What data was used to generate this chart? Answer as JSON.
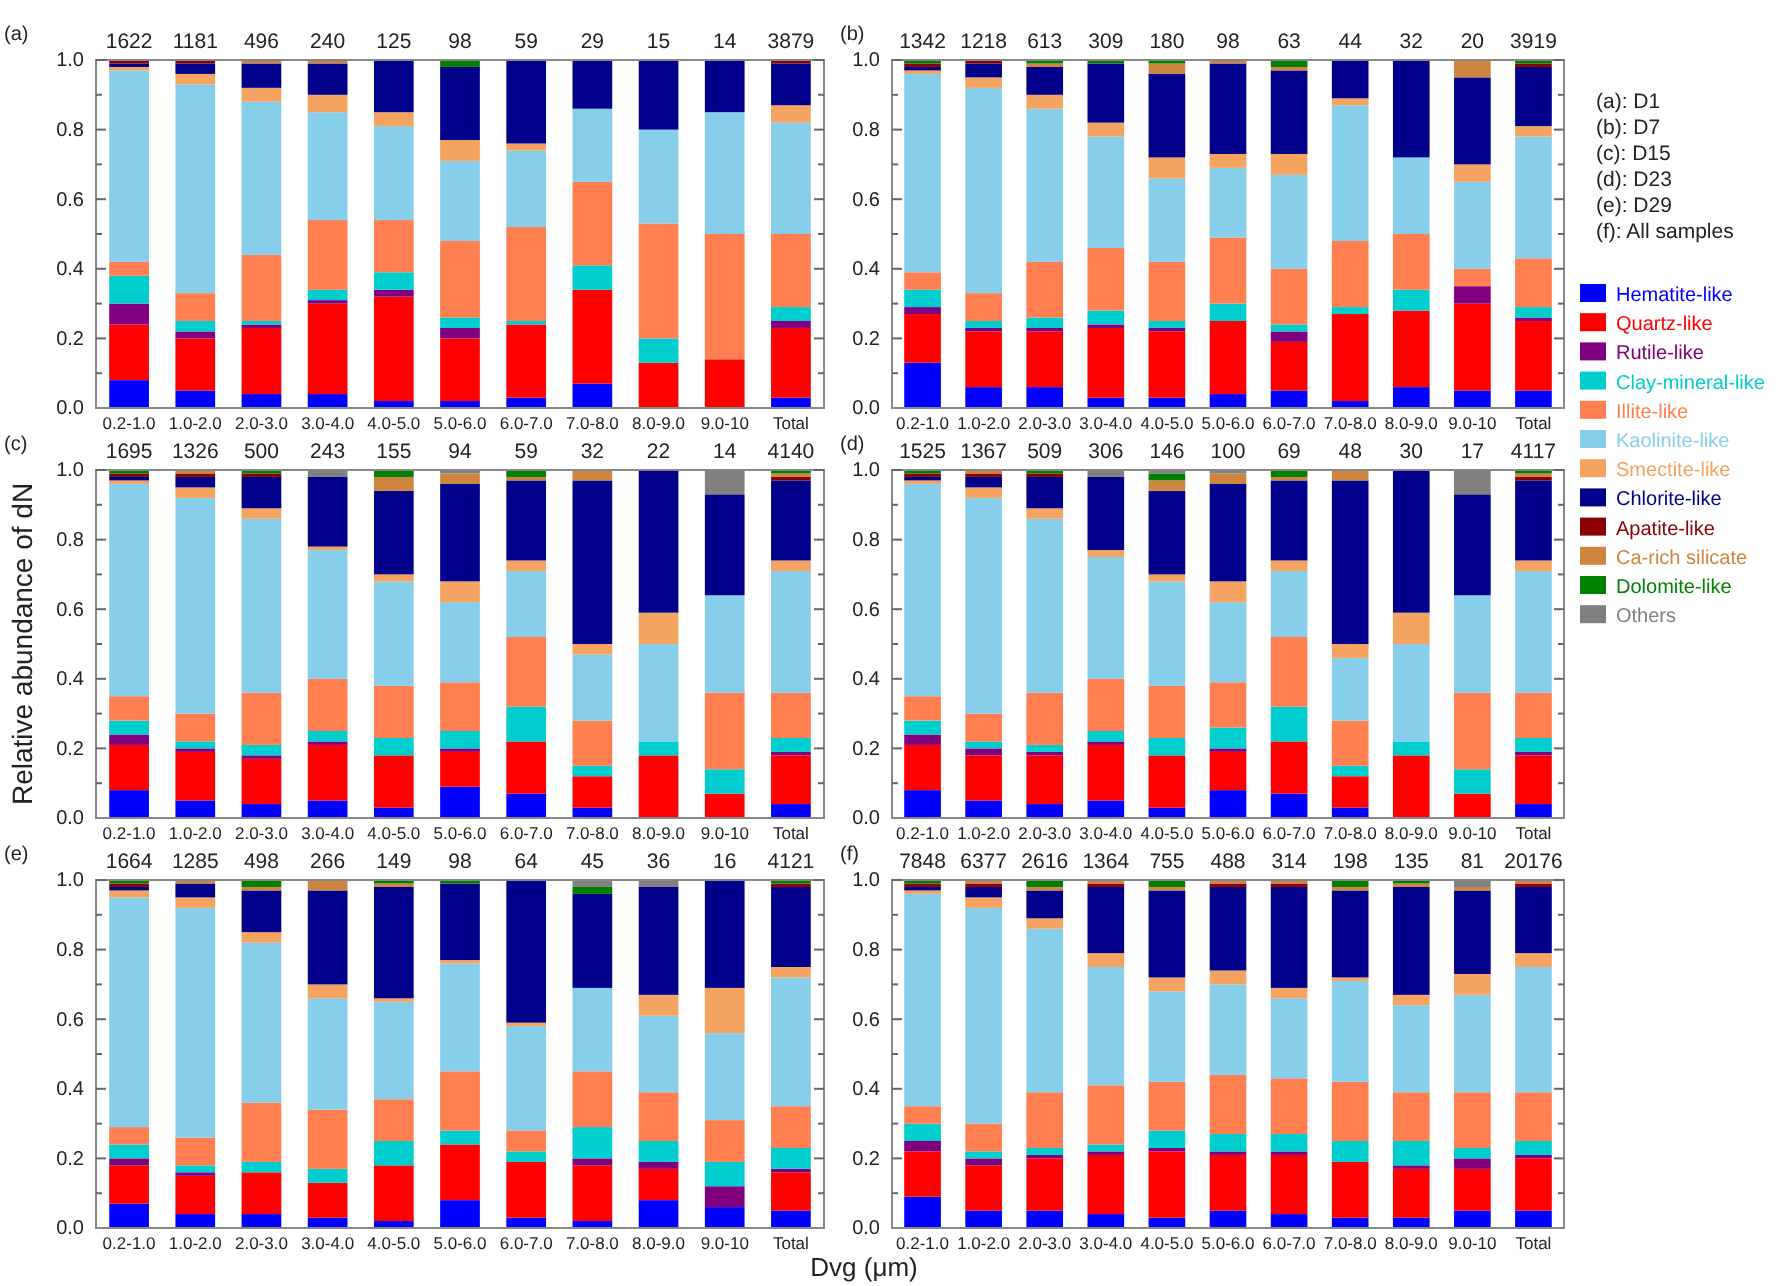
{
  "chart_data": [
    {
      "type": "bar",
      "stacked": true,
      "title": "(a)",
      "categories": [
        "0.2-1.0",
        "1.0-2.0",
        "2.0-3.0",
        "3.0-4.0",
        "4.0-5.0",
        "5.0-6.0",
        "6.0-7.0",
        "7.0-8.0",
        "8.0-9.0",
        "9.0-10",
        "Total"
      ],
      "ylim": [
        0,
        1
      ],
      "yticks": [
        {
          "value": 0,
          "label": "0.0"
        },
        {
          "value": 0.1,
          "label": null
        },
        {
          "value": 0.2,
          "label": "0.2"
        },
        {
          "value": 0.3,
          "label": null
        },
        {
          "value": 0.4,
          "label": "0.4"
        },
        {
          "value": 0.5,
          "label": null
        },
        {
          "value": 0.6,
          "label": "0.6"
        },
        {
          "value": 0.7,
          "label": null
        },
        {
          "value": 0.8,
          "label": "0.8"
        },
        {
          "value": 0.9,
          "label": null
        },
        {
          "value": 1,
          "label": "1.0"
        }
      ],
      "annotations": [
        "1622",
        "1181",
        "496",
        "240",
        "125",
        "98",
        "59",
        "29",
        "15",
        "14",
        "3879"
      ],
      "series": [
        {
          "color": "#0000ff",
          "values": [
            0.08,
            0.05,
            0.04,
            0.04,
            0.02,
            0.02,
            0.03,
            0.07,
            0,
            0,
            0.03
          ]
        },
        {
          "color": "#ff0000",
          "values": [
            0.16,
            0.15,
            0.19,
            0.26,
            0.3,
            0.18,
            0.21,
            0.27,
            0.13,
            0.14,
            0.2
          ]
        },
        {
          "color": "#800080",
          "values": [
            0.06,
            0.02,
            0.01,
            0.01,
            0.02,
            0.03,
            0,
            0,
            0,
            0,
            0.02
          ]
        },
        {
          "color": "#00cdcd",
          "values": [
            0.08,
            0.03,
            0.01,
            0.03,
            0.05,
            0.03,
            0.01,
            0.07,
            0.07,
            0,
            0.04
          ]
        },
        {
          "color": "#ff7f50",
          "values": [
            0.04,
            0.08,
            0.19,
            0.2,
            0.15,
            0.22,
            0.27,
            0.24,
            0.33,
            0.36,
            0.21
          ]
        },
        {
          "color": "#87ceeb",
          "values": [
            0.55,
            0.6,
            0.44,
            0.31,
            0.27,
            0.23,
            0.22,
            0.21,
            0.27,
            0.35,
            0.32
          ]
        },
        {
          "color": "#f4a460",
          "values": [
            0.01,
            0.03,
            0.04,
            0.05,
            0.04,
            0.06,
            0.02,
            0,
            0,
            0,
            0.05
          ]
        },
        {
          "color": "#00008b",
          "values": [
            0.01,
            0.03,
            0.07,
            0.09,
            0.15,
            0.21,
            0.24,
            0.14,
            0.2,
            0.15,
            0.12
          ]
        },
        {
          "color": "#8b0000",
          "values": [
            0.01,
            0.01,
            0,
            0,
            0,
            0,
            0,
            0,
            0,
            0,
            0.01
          ]
        },
        {
          "color": "#cd853f",
          "values": [
            0,
            0,
            0.01,
            0.01,
            0,
            0,
            0,
            0,
            0,
            0,
            0
          ]
        },
        {
          "color": "#008000",
          "values": [
            0,
            0,
            0,
            0,
            0,
            0.02,
            0,
            0,
            0,
            0,
            0
          ]
        },
        {
          "color": "#808080",
          "values": [
            0,
            0,
            0,
            0,
            0,
            0,
            0,
            0,
            0,
            0,
            0
          ]
        }
      ]
    },
    {
      "type": "bar",
      "stacked": true,
      "title": "(b)",
      "legend": "right",
      "categories": [
        "0.2-1.0",
        "1.0-2.0",
        "2.0-3.0",
        "3.0-4.0",
        "4.0-5.0",
        "5.0-6.0",
        "6.0-7.0",
        "7.0-8.0",
        "8.0-9.0",
        "9.0-10",
        "Total"
      ],
      "ylim": [
        0,
        1
      ],
      "yticks": [
        {
          "value": 0,
          "label": "0.0"
        },
        {
          "value": 0.1,
          "label": null
        },
        {
          "value": 0.2,
          "label": "0.2"
        },
        {
          "value": 0.3,
          "label": null
        },
        {
          "value": 0.4,
          "label": "0.4"
        },
        {
          "value": 0.5,
          "label": null
        },
        {
          "value": 0.6,
          "label": "0.6"
        },
        {
          "value": 0.7,
          "label": null
        },
        {
          "value": 0.8,
          "label": "0.8"
        },
        {
          "value": 0.9,
          "label": null
        },
        {
          "value": 1,
          "label": "1.0"
        }
      ],
      "annotations": [
        "1342",
        "1218",
        "613",
        "309",
        "180",
        "98",
        "63",
        "44",
        "32",
        "20",
        "3919",
        "(a): D1",
        "(b): D7",
        "(c): D15",
        "(d): D23",
        "(e): D29",
        "(f):  All samples"
      ],
      "series": [
        {
          "name": "Hematite-like",
          "color": "#0000ff",
          "values": [
            0.13,
            0.06,
            0.06,
            0.03,
            0.03,
            0.04,
            0.05,
            0.02,
            0.06,
            0.05,
            0.05
          ]
        },
        {
          "name": "Quartz-like",
          "color": "#ff0000",
          "values": [
            0.14,
            0.16,
            0.16,
            0.2,
            0.19,
            0.21,
            0.14,
            0.25,
            0.22,
            0.25,
            0.2
          ]
        },
        {
          "name": "Rutile-like",
          "color": "#800080",
          "values": [
            0.02,
            0.01,
            0.01,
            0.01,
            0.01,
            0,
            0.03,
            0,
            0,
            0.05,
            0.01
          ]
        },
        {
          "name": "Clay-mineral-like",
          "color": "#00cdcd",
          "values": [
            0.05,
            0.02,
            0.03,
            0.04,
            0.02,
            0.05,
            0.02,
            0.02,
            0.06,
            0,
            0.03
          ]
        },
        {
          "name": "Illite-like",
          "color": "#ff7f50",
          "values": [
            0.05,
            0.08,
            0.16,
            0.18,
            0.17,
            0.19,
            0.16,
            0.19,
            0.16,
            0.05,
            0.14
          ]
        },
        {
          "name": "Kaolinite-like",
          "color": "#87ceeb",
          "values": [
            0.57,
            0.59,
            0.44,
            0.32,
            0.24,
            0.2,
            0.27,
            0.39,
            0.22,
            0.25,
            0.35
          ]
        },
        {
          "name": "Smectite-like",
          "color": "#f4a460",
          "values": [
            0.01,
            0.03,
            0.04,
            0.04,
            0.06,
            0.04,
            0.06,
            0.02,
            0,
            0.05,
            0.03
          ]
        },
        {
          "name": "Chlorite-like",
          "color": "#00008b",
          "values": [
            0.01,
            0.04,
            0.08,
            0.17,
            0.24,
            0.26,
            0.24,
            0.11,
            0.28,
            0.25,
            0.17
          ]
        },
        {
          "name": "Apatite-like",
          "color": "#8b0000",
          "values": [
            0.01,
            0.01,
            0,
            0,
            0,
            0,
            0,
            0,
            0,
            0,
            0.01
          ]
        },
        {
          "name": "Ca-rich silicate",
          "color": "#cd853f",
          "values": [
            0,
            0,
            0.01,
            0,
            0.03,
            0.01,
            0.01,
            0,
            0,
            0.05,
            0
          ]
        },
        {
          "name": "Dolomite-like",
          "color": "#008000",
          "values": [
            0.01,
            0,
            0.01,
            0.01,
            0.01,
            0,
            0.02,
            0,
            0,
            0,
            0.01
          ]
        },
        {
          "name": "Others",
          "color": "#808080",
          "values": [
            0,
            0,
            0,
            0,
            0,
            0,
            0,
            0,
            0,
            0,
            0
          ]
        }
      ]
    },
    {
      "type": "bar",
      "stacked": true,
      "title": "(c)",
      "ylabel": "Relative abundance of dN",
      "categories": [
        "0.2-1.0",
        "1.0-2.0",
        "2.0-3.0",
        "3.0-4.0",
        "4.0-5.0",
        "5.0-6.0",
        "6.0-7.0",
        "7.0-8.0",
        "8.0-9.0",
        "9.0-10",
        "Total"
      ],
      "ylim": [
        0,
        1
      ],
      "yticks": [
        {
          "value": 0,
          "label": "0.0"
        },
        {
          "value": 0.1,
          "label": null
        },
        {
          "value": 0.2,
          "label": "0.2"
        },
        {
          "value": 0.3,
          "label": null
        },
        {
          "value": 0.4,
          "label": "0.4"
        },
        {
          "value": 0.5,
          "label": null
        },
        {
          "value": 0.6,
          "label": "0.6"
        },
        {
          "value": 0.7,
          "label": null
        },
        {
          "value": 0.8,
          "label": "0.8"
        },
        {
          "value": 0.9,
          "label": null
        },
        {
          "value": 1,
          "label": "1.0"
        }
      ],
      "annotations": [
        "1695",
        "1326",
        "500",
        "243",
        "155",
        "94",
        "59",
        "32",
        "22",
        "14",
        "4140"
      ],
      "series": [
        {
          "color": "#0000ff",
          "values": [
            0.08,
            0.05,
            0.04,
            0.05,
            0.03,
            0.09,
            0.07,
            0.03,
            0,
            0,
            0.04
          ]
        },
        {
          "color": "#ff0000",
          "values": [
            0.13,
            0.14,
            0.13,
            0.16,
            0.15,
            0.1,
            0.15,
            0.09,
            0.18,
            0.07,
            0.14
          ]
        },
        {
          "color": "#800080",
          "values": [
            0.03,
            0.01,
            0.01,
            0.01,
            0,
            0.01,
            0,
            0,
            0,
            0,
            0.01
          ]
        },
        {
          "color": "#00cdcd",
          "values": [
            0.04,
            0.02,
            0.03,
            0.03,
            0.05,
            0.05,
            0.1,
            0.03,
            0.04,
            0.07,
            0.04
          ]
        },
        {
          "color": "#ff7f50",
          "values": [
            0.07,
            0.08,
            0.15,
            0.15,
            0.15,
            0.14,
            0.2,
            0.13,
            0,
            0.22,
            0.13
          ]
        },
        {
          "color": "#87ceeb",
          "values": [
            0.61,
            0.62,
            0.5,
            0.37,
            0.3,
            0.23,
            0.19,
            0.19,
            0.28,
            0.28,
            0.35
          ]
        },
        {
          "color": "#f4a460",
          "values": [
            0.01,
            0.03,
            0.03,
            0.01,
            0.02,
            0.06,
            0.03,
            0.03,
            0.09,
            0,
            0.03
          ]
        },
        {
          "color": "#00008b",
          "values": [
            0.01,
            0.03,
            0.09,
            0.2,
            0.24,
            0.28,
            0.23,
            0.47,
            0.41,
            0.29,
            0.23
          ]
        },
        {
          "color": "#8b0000",
          "values": [
            0.01,
            0.01,
            0.01,
            0,
            0,
            0,
            0,
            0,
            0,
            0,
            0.01
          ]
        },
        {
          "color": "#cd853f",
          "values": [
            0,
            0.01,
            0,
            0,
            0.04,
            0.03,
            0.01,
            0.03,
            0,
            0,
            0.01
          ]
        },
        {
          "color": "#008000",
          "values": [
            0.01,
            0,
            0.01,
            0,
            0.02,
            0,
            0.02,
            0,
            0,
            0,
            0.01
          ]
        },
        {
          "color": "#808080",
          "values": [
            0,
            0,
            0,
            0.02,
            0,
            0.01,
            0,
            0,
            0,
            0.07,
            0
          ]
        }
      ]
    },
    {
      "type": "bar",
      "stacked": true,
      "title": "(d)",
      "categories": [
        "0.2-1.0",
        "1.0-2.0",
        "2.0-3.0",
        "3.0-4.0",
        "4.0-5.0",
        "5.0-6.0",
        "6.0-7.0",
        "7.0-8.0",
        "8.0-9.0",
        "9.0-10",
        "Total"
      ],
      "ylim": [
        0,
        1
      ],
      "yticks": [
        {
          "value": 0,
          "label": "0.0"
        },
        {
          "value": 0.1,
          "label": null
        },
        {
          "value": 0.2,
          "label": "0.2"
        },
        {
          "value": 0.3,
          "label": null
        },
        {
          "value": 0.4,
          "label": "0.4"
        },
        {
          "value": 0.5,
          "label": null
        },
        {
          "value": 0.6,
          "label": "0.6"
        },
        {
          "value": 0.7,
          "label": null
        },
        {
          "value": 0.8,
          "label": "0.8"
        },
        {
          "value": 0.9,
          "label": null
        },
        {
          "value": 1,
          "label": "1.0"
        }
      ],
      "annotations": [
        "1525",
        "1367",
        "509",
        "306",
        "146",
        "100",
        "69",
        "48",
        "30",
        "17",
        "4117"
      ],
      "series": [
        {
          "color": "#0000ff",
          "values": [
            0.08,
            0.05,
            0.04,
            0.05,
            0.03,
            0.08,
            0.07,
            0.03,
            0,
            0,
            0.04
          ]
        },
        {
          "color": "#ff0000",
          "values": [
            0.13,
            0.13,
            0.14,
            0.16,
            0.15,
            0.11,
            0.15,
            0.09,
            0.18,
            0.07,
            0.14
          ]
        },
        {
          "color": "#800080",
          "values": [
            0.03,
            0.02,
            0.01,
            0.01,
            0,
            0.01,
            0,
            0,
            0,
            0,
            0.01
          ]
        },
        {
          "color": "#00cdcd",
          "values": [
            0.04,
            0.02,
            0.02,
            0.03,
            0.05,
            0.06,
            0.1,
            0.03,
            0.04,
            0.07,
            0.04
          ]
        },
        {
          "color": "#ff7f50",
          "values": [
            0.07,
            0.08,
            0.15,
            0.15,
            0.15,
            0.13,
            0.2,
            0.13,
            0,
            0.22,
            0.13
          ]
        },
        {
          "color": "#87ceeb",
          "values": [
            0.61,
            0.62,
            0.5,
            0.35,
            0.3,
            0.23,
            0.19,
            0.18,
            0.28,
            0.28,
            0.35
          ]
        },
        {
          "color": "#f4a460",
          "values": [
            0.01,
            0.03,
            0.03,
            0.02,
            0.02,
            0.06,
            0.03,
            0.04,
            0.09,
            0,
            0.03
          ]
        },
        {
          "color": "#00008b",
          "values": [
            0.01,
            0.03,
            0.09,
            0.21,
            0.24,
            0.28,
            0.23,
            0.47,
            0.41,
            0.29,
            0.23
          ]
        },
        {
          "color": "#8b0000",
          "values": [
            0.01,
            0.01,
            0.01,
            0,
            0,
            0,
            0,
            0,
            0,
            0,
            0.01
          ]
        },
        {
          "color": "#cd853f",
          "values": [
            0,
            0.01,
            0,
            0,
            0.03,
            0.03,
            0.01,
            0.03,
            0,
            0,
            0.01
          ]
        },
        {
          "color": "#008000",
          "values": [
            0.01,
            0,
            0.01,
            0,
            0.02,
            0,
            0.02,
            0,
            0,
            0,
            0.01
          ]
        },
        {
          "color": "#808080",
          "values": [
            0,
            0,
            0,
            0.02,
            0.01,
            0.01,
            0,
            0,
            0,
            0.07,
            0
          ]
        }
      ]
    },
    {
      "type": "bar",
      "stacked": true,
      "title": "(e)",
      "xlabel": "Dvg (μm)",
      "categories": [
        "0.2-1.0",
        "1.0-2.0",
        "2.0-3.0",
        "3.0-4.0",
        "4.0-5.0",
        "5.0-6.0",
        "6.0-7.0",
        "7.0-8.0",
        "8.0-9.0",
        "9.0-10",
        "Total"
      ],
      "ylim": [
        0,
        1
      ],
      "yticks": [
        {
          "value": 0,
          "label": "0.0"
        },
        {
          "value": 0.1,
          "label": null
        },
        {
          "value": 0.2,
          "label": "0.2"
        },
        {
          "value": 0.3,
          "label": null
        },
        {
          "value": 0.4,
          "label": "0.4"
        },
        {
          "value": 0.5,
          "label": null
        },
        {
          "value": 0.6,
          "label": "0.6"
        },
        {
          "value": 0.7,
          "label": null
        },
        {
          "value": 0.8,
          "label": "0.8"
        },
        {
          "value": 0.9,
          "label": null
        },
        {
          "value": 1,
          "label": "1.0"
        }
      ],
      "annotations": [
        "1664",
        "1285",
        "498",
        "266",
        "149",
        "98",
        "64",
        "45",
        "36",
        "16",
        "4121"
      ],
      "series": [
        {
          "color": "#0000ff",
          "values": [
            0.07,
            0.04,
            0.04,
            0.03,
            0.02,
            0.08,
            0.03,
            0.02,
            0.08,
            0.06,
            0.05
          ]
        },
        {
          "color": "#ff0000",
          "values": [
            0.11,
            0.11,
            0.12,
            0.1,
            0.16,
            0.16,
            0.16,
            0.16,
            0.09,
            0,
            0.11
          ]
        },
        {
          "color": "#800080",
          "values": [
            0.02,
            0.01,
            0,
            0,
            0,
            0,
            0,
            0.02,
            0.02,
            0.06,
            0.01
          ]
        },
        {
          "color": "#00cdcd",
          "values": [
            0.04,
            0.02,
            0.03,
            0.04,
            0.07,
            0.04,
            0.03,
            0.09,
            0.06,
            0.07,
            0.06
          ]
        },
        {
          "color": "#ff7f50",
          "values": [
            0.05,
            0.08,
            0.17,
            0.17,
            0.12,
            0.17,
            0.06,
            0.16,
            0.14,
            0.12,
            0.12
          ]
        },
        {
          "color": "#87ceeb",
          "values": [
            0.66,
            0.66,
            0.46,
            0.32,
            0.28,
            0.31,
            0.3,
            0.24,
            0.22,
            0.25,
            0.37
          ]
        },
        {
          "color": "#f4a460",
          "values": [
            0.02,
            0.03,
            0.03,
            0.04,
            0.01,
            0.01,
            0.01,
            0,
            0.06,
            0.13,
            0.03
          ]
        },
        {
          "color": "#00008b",
          "values": [
            0.01,
            0.04,
            0.12,
            0.27,
            0.32,
            0.22,
            0.41,
            0.27,
            0.31,
            0.31,
            0.23
          ]
        },
        {
          "color": "#8b0000",
          "values": [
            0.01,
            0,
            0,
            0,
            0,
            0,
            0,
            0,
            0,
            0,
            0.01
          ]
        },
        {
          "color": "#cd853f",
          "values": [
            0,
            0.01,
            0.01,
            0.03,
            0.01,
            0,
            0,
            0,
            0,
            0,
            0
          ]
        },
        {
          "color": "#008000",
          "values": [
            0.01,
            0,
            0.02,
            0,
            0.01,
            0.01,
            0,
            0.02,
            0,
            0,
            0.01
          ]
        },
        {
          "color": "#808080",
          "values": [
            0,
            0,
            0,
            0,
            0,
            0,
            0,
            0.02,
            0.02,
            0,
            0
          ]
        }
      ]
    },
    {
      "type": "bar",
      "stacked": true,
      "title": "(f)",
      "categories": [
        "0.2-1.0",
        "1.0-2.0",
        "2.0-3.0",
        "3.0-4.0",
        "4.0-5.0",
        "5.0-6.0",
        "6.0-7.0",
        "7.0-8.0",
        "8.0-9.0",
        "9.0-10",
        "Total"
      ],
      "ylim": [
        0,
        1
      ],
      "yticks": [
        {
          "value": 0,
          "label": "0.0"
        },
        {
          "value": 0.1,
          "label": null
        },
        {
          "value": 0.2,
          "label": "0.2"
        },
        {
          "value": 0.3,
          "label": null
        },
        {
          "value": 0.4,
          "label": "0.4"
        },
        {
          "value": 0.5,
          "label": null
        },
        {
          "value": 0.6,
          "label": "0.6"
        },
        {
          "value": 0.7,
          "label": null
        },
        {
          "value": 0.8,
          "label": "0.8"
        },
        {
          "value": 0.9,
          "label": null
        },
        {
          "value": 1,
          "label": "1.0"
        }
      ],
      "annotations": [
        "7848",
        "6377",
        "2616",
        "1364",
        "755",
        "488",
        "314",
        "198",
        "135",
        "81",
        "20176"
      ],
      "series": [
        {
          "color": "#0000ff",
          "values": [
            0.09,
            0.05,
            0.05,
            0.04,
            0.03,
            0.05,
            0.04,
            0.03,
            0.03,
            0.05,
            0.05
          ]
        },
        {
          "color": "#ff0000",
          "values": [
            0.13,
            0.13,
            0.15,
            0.17,
            0.19,
            0.16,
            0.17,
            0.16,
            0.14,
            0.12,
            0.15
          ]
        },
        {
          "color": "#800080",
          "values": [
            0.03,
            0.02,
            0.01,
            0.01,
            0.01,
            0.01,
            0.01,
            0,
            0.01,
            0.03,
            0.01
          ]
        },
        {
          "color": "#00cdcd",
          "values": [
            0.05,
            0.02,
            0.02,
            0.02,
            0.05,
            0.05,
            0.05,
            0.06,
            0.07,
            0.03,
            0.04
          ]
        },
        {
          "color": "#ff7f50",
          "values": [
            0.05,
            0.08,
            0.16,
            0.17,
            0.14,
            0.17,
            0.16,
            0.17,
            0.14,
            0.16,
            0.14
          ]
        },
        {
          "color": "#87ceeb",
          "values": [
            0.61,
            0.62,
            0.47,
            0.34,
            0.26,
            0.26,
            0.23,
            0.29,
            0.25,
            0.28,
            0.36
          ]
        },
        {
          "color": "#f4a460",
          "values": [
            0.01,
            0.03,
            0.03,
            0.04,
            0.04,
            0.04,
            0.03,
            0.01,
            0.03,
            0.06,
            0.04
          ]
        },
        {
          "color": "#00008b",
          "values": [
            0.01,
            0.03,
            0.08,
            0.19,
            0.25,
            0.24,
            0.29,
            0.25,
            0.31,
            0.24,
            0.19
          ]
        },
        {
          "color": "#8b0000",
          "values": [
            0.01,
            0.01,
            0,
            0.01,
            0,
            0.01,
            0.01,
            0,
            0,
            0,
            0.01
          ]
        },
        {
          "color": "#cd853f",
          "values": [
            0,
            0.01,
            0.01,
            0.01,
            0.01,
            0.01,
            0.01,
            0.01,
            0.01,
            0.01,
            0.01
          ]
        },
        {
          "color": "#008000",
          "values": [
            0.01,
            0,
            0.02,
            0,
            0.02,
            0,
            0,
            0.02,
            0.01,
            0,
            0
          ]
        },
        {
          "color": "#808080",
          "values": [
            0,
            0,
            0,
            0,
            0,
            0,
            0,
            0,
            0,
            0.02,
            0
          ]
        }
      ]
    }
  ]
}
